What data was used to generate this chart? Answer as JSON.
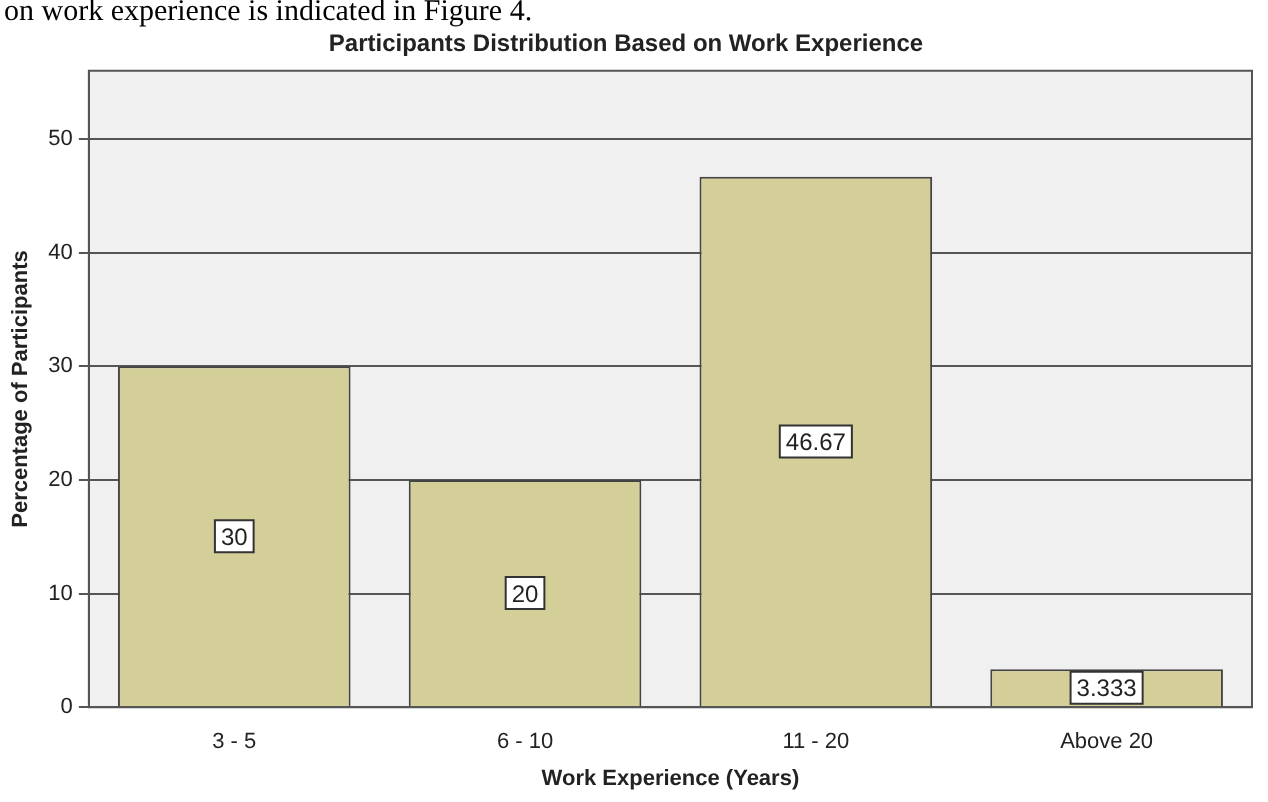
{
  "chart_data": {
    "type": "bar",
    "title": "Participants Distribution Based on Work Experience",
    "xlabel": "Work Experience (Years)",
    "ylabel": "Percentage of Participants",
    "annotations": [
      "on work experience is indicated in Figure 4."
    ],
    "categories": [
      "3 - 5",
      "6 - 10",
      "11 - 20",
      "Above 20"
    ],
    "values": [
      30,
      20,
      46.67,
      3.333
    ],
    "color": "#d4cf98",
    "ylim": [
      0,
      56
    ],
    "yticks": [
      0,
      10,
      20,
      30,
      40,
      50
    ],
    "grid": "y",
    "legend": false,
    "data_labels": true
  }
}
